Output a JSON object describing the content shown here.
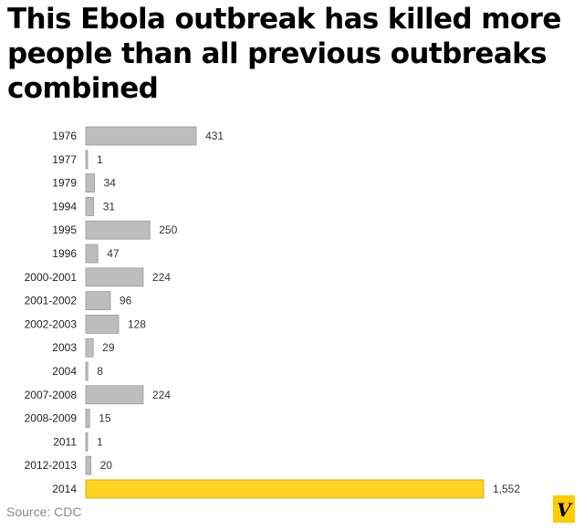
{
  "title": "This Ebola outbreak has killed more people than all previous outbreaks combined",
  "source": "Source: CDC",
  "logo_letter": "V",
  "colors": {
    "bar_default": "#bdbdbd",
    "bar_default_stroke": "#9a9a9a",
    "bar_highlight": "#ffd322",
    "bar_highlight_stroke": "#c9a400",
    "logo": "#ffcc00"
  },
  "chart_data": {
    "type": "bar",
    "orientation": "horizontal",
    "categories": [
      "1976",
      "1977",
      "1979",
      "1994",
      "1995",
      "1996",
      "2000-2001",
      "2001-2002",
      "2002-2003",
      "2003",
      "2004",
      "2007-2008",
      "2008-2009",
      "2011",
      "2012-2013",
      "2014"
    ],
    "values": [
      431,
      1,
      34,
      31,
      250,
      47,
      224,
      96,
      128,
      29,
      8,
      224,
      15,
      1,
      20,
      1552
    ],
    "value_labels": [
      "431",
      "1",
      "34",
      "31",
      "250",
      "47",
      "224",
      "96",
      "128",
      "29",
      "8",
      "224",
      "15",
      "1",
      "20",
      "1,552"
    ],
    "highlight": "2014",
    "xlabel": "",
    "ylabel": "",
    "grid": false,
    "legend": "none"
  }
}
